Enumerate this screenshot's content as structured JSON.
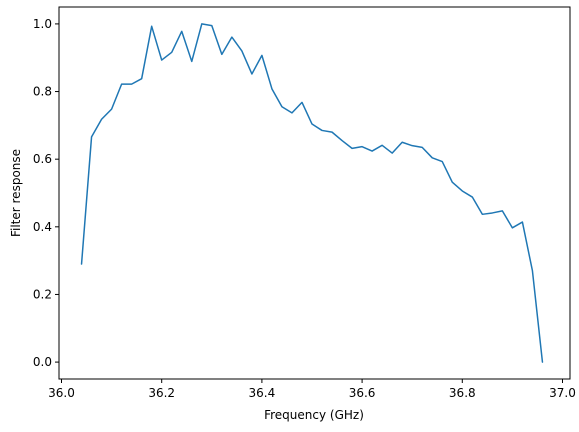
{
  "chart_data": {
    "type": "line",
    "title": "",
    "xlabel": "Frequency (GHz)",
    "ylabel": "Filter response",
    "xlim": [
      35.995,
      37.015
    ],
    "ylim": [
      -0.05,
      1.05
    ],
    "xticks": [
      36.0,
      36.2,
      36.4,
      36.6,
      36.8,
      37.0
    ],
    "xtick_labels": [
      "36.0",
      "36.2",
      "36.4",
      "36.6",
      "36.8",
      "37.0"
    ],
    "yticks": [
      0.0,
      0.2,
      0.4,
      0.6,
      0.8,
      1.0
    ],
    "ytick_labels": [
      "0.0",
      "0.2",
      "0.4",
      "0.6",
      "0.8",
      "1.0"
    ],
    "grid": false,
    "legend": "none",
    "line_color": "#1f77b4",
    "series": [
      {
        "x": [
          36.04,
          36.06,
          36.08,
          36.1,
          36.12,
          36.14,
          36.16,
          36.18,
          36.2,
          36.22,
          36.24,
          36.26,
          36.28,
          36.3,
          36.32,
          36.34,
          36.36,
          36.38,
          36.4,
          36.42,
          36.44,
          36.46,
          36.48,
          36.5,
          36.52,
          36.54,
          36.56,
          36.58,
          36.6,
          36.62,
          36.64,
          36.66,
          36.68,
          36.7,
          36.72,
          36.74,
          36.76,
          36.78,
          36.8,
          36.82,
          36.84,
          36.86,
          36.88,
          36.9,
          36.92,
          36.94,
          36.96
        ],
        "y": [
          0.29,
          0.666,
          0.718,
          0.748,
          0.822,
          0.822,
          0.838,
          0.993,
          0.893,
          0.916,
          0.978,
          0.889,
          1.0,
          0.995,
          0.91,
          0.961,
          0.92,
          0.852,
          0.907,
          0.808,
          0.755,
          0.737,
          0.768,
          0.704,
          0.685,
          0.68,
          0.655,
          0.632,
          0.637,
          0.624,
          0.641,
          0.618,
          0.65,
          0.64,
          0.635,
          0.604,
          0.593,
          0.532,
          0.506,
          0.488,
          0.437,
          0.441,
          0.447,
          0.397,
          0.414,
          0.27,
          0.0
        ]
      }
    ]
  }
}
